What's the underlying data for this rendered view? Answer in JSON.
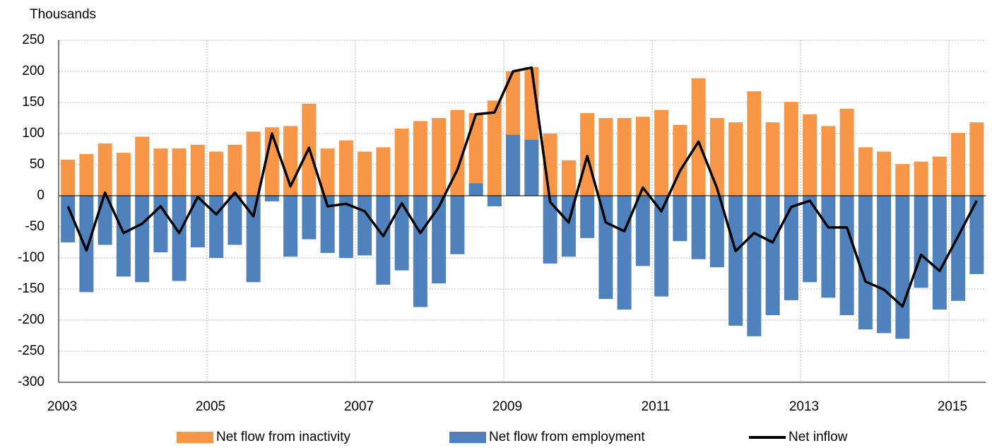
{
  "chart_data": {
    "type": "bar_line",
    "y_axis_label": "Thousands",
    "categories": [
      "2003",
      null,
      null,
      null,
      null,
      null,
      null,
      null,
      "2005",
      null,
      null,
      null,
      null,
      null,
      null,
      null,
      "2007",
      null,
      null,
      null,
      null,
      null,
      null,
      null,
      "2009",
      null,
      null,
      null,
      null,
      null,
      null,
      null,
      "2011",
      null,
      null,
      null,
      null,
      null,
      null,
      null,
      "2013",
      null,
      null,
      null,
      null,
      null,
      null,
      null,
      "2015",
      null
    ],
    "series": [
      {
        "name": "Net flow from inactivity",
        "kind": "bar",
        "color": "#f79646",
        "values": [
          58,
          67,
          84,
          69,
          95,
          76,
          76,
          82,
          71,
          82,
          103,
          110,
          112,
          148,
          76,
          89,
          71,
          78,
          108,
          120,
          125,
          138,
          133,
          153,
          200,
          207,
          100,
          57,
          133,
          125,
          125,
          127,
          138,
          114,
          189,
          125,
          118,
          168,
          118,
          151,
          131,
          112,
          140,
          78,
          71,
          51,
          55,
          63,
          101,
          118
        ]
      },
      {
        "name": "Net flow from employment",
        "kind": "bar",
        "color": "#4f81bd",
        "values": [
          -75,
          -155,
          -79,
          -130,
          -139,
          -91,
          -137,
          -83,
          -100,
          -79,
          -139,
          -9,
          -98,
          -70,
          -92,
          -100,
          -96,
          -143,
          -120,
          -179,
          -141,
          -94,
          20,
          -17,
          98,
          90,
          -109,
          -98,
          -68,
          -166,
          -183,
          -113,
          -162,
          -73,
          -102,
          -115,
          -209,
          -226,
          -192,
          -168,
          -139,
          -164,
          -192,
          -215,
          -221,
          -230,
          -148,
          -183,
          -169,
          -126
        ]
      },
      {
        "name": "Net inflow",
        "kind": "line",
        "color": "#000000",
        "values": [
          -17,
          -88,
          5,
          -60,
          -45,
          -17,
          -60,
          -2,
          -30,
          5,
          -33,
          100,
          15,
          77,
          -17,
          -13,
          -25,
          -65,
          -12,
          -60,
          -18,
          42,
          131,
          134,
          200,
          206,
          -10,
          -43,
          64,
          -43,
          -57,
          13,
          -25,
          40,
          87,
          12,
          -89,
          -60,
          -75,
          -18,
          -8,
          -51,
          -51,
          -138,
          -151,
          -178,
          -95,
          -121,
          -65,
          -8
        ]
      }
    ],
    "ylim": [
      -300,
      250
    ],
    "yticks": [
      -300,
      -250,
      -200,
      -150,
      -100,
      -50,
      0,
      50,
      100,
      150,
      200,
      250
    ],
    "grid": true,
    "legend": "bottom"
  }
}
